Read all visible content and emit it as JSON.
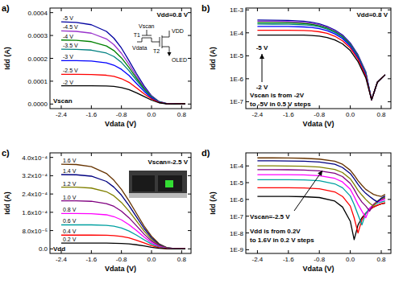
{
  "chart_data": [
    {
      "type": "line",
      "title": "a)",
      "x_label": "Vdata (V)",
      "y_label": "Idd (A)",
      "annotations": [
        "Vdd=0.8 V",
        "Vscan"
      ],
      "circuit": [
        "Vscan",
        "T1",
        "Vdata",
        "T2",
        "VDD",
        "OLED"
      ],
      "x": [
        -2.4,
        -2.0,
        -1.6,
        -1.2,
        -1.0,
        -0.8,
        -0.6,
        -0.4,
        -0.2,
        0.0,
        0.2,
        0.4,
        0.6,
        0.9
      ],
      "xlim": [
        -2.7,
        1.05
      ],
      "xticks": [
        -2.4,
        -1.6,
        -0.8,
        {
          "value": 0,
          "label": "0.0"
        },
        0.8
      ],
      "ylim": [
        -2e-05,
        0.00042
      ],
      "yticks": [
        {
          "value": 0,
          "label": "0.0000"
        },
        {
          "value": 0.0001,
          "label": "0.0001"
        },
        {
          "value": 0.0002,
          "label": "0.0002"
        },
        {
          "value": 0.0003,
          "label": "0.0003"
        },
        {
          "value": 0.0004,
          "label": "0.0004"
        }
      ],
      "grid": false,
      "series": [
        {
          "name": "-5 V",
          "color": "#0000a0",
          "values": [
            0.00036,
            0.000357,
            0.000347,
            0.000318,
            0.000288,
            0.000245,
            0.00019,
            0.000133,
            8e-05,
            3.6e-05,
            1.1e-05,
            2e-06,
            2e-07,
            1.5e-06
          ]
        },
        {
          "name": "-4.5 V",
          "color": "#9933cc",
          "values": [
            0.00032,
            0.000318,
            0.00031,
            0.000285,
            0.00026,
            0.000222,
            0.000174,
            0.000122,
            7.3e-05,
            3.3e-05,
            1e-05,
            2e-06,
            2e-07,
            1.5e-06
          ]
        },
        {
          "name": "-4 V",
          "color": "#008000",
          "values": [
            0.00028,
            0.000279,
            0.000273,
            0.000254,
            0.000234,
            0.000202,
            0.00016,
            0.000113,
            6.8e-05,
            3.1e-05,
            9.5e-06,
            1.8e-06,
            2e-07,
            1.4e-06
          ]
        },
        {
          "name": "-3.5 V",
          "color": "#008080",
          "values": [
            0.00024,
            0.000239,
            0.000236,
            0.000223,
            0.000208,
            0.000182,
            0.000146,
            0.000104,
            6.3e-05,
            2.9e-05,
            9e-06,
            1.7e-06,
            2e-07,
            1.4e-06
          ]
        },
        {
          "name": "-3 V",
          "color": "#0000ff",
          "values": [
            0.00019,
            0.00019,
            0.000188,
            0.00018,
            0.00017,
            0.000152,
            0.000125,
            9e-05,
            5.6e-05,
            2.6e-05,
            8e-06,
            1.5e-06,
            2e-07,
            1.3e-06
          ]
        },
        {
          "name": "-2.5 V",
          "color": "#ff0000",
          "values": [
            0.00013,
            0.00013,
            0.000129,
            0.000126,
            0.000121,
            0.000111,
            9.5e-05,
            7.1e-05,
            4.5e-05,
            2.2e-05,
            7e-06,
            1.3e-06,
            2e-07,
            1.3e-06
          ]
        },
        {
          "name": "-2 V",
          "color": "#000000",
          "values": [
            8e-05,
            8e-05,
            8e-05,
            7.9e-05,
            7.7e-05,
            7.2e-05,
            6.3e-05,
            4.9e-05,
            3.3e-05,
            1.7e-05,
            5.5e-06,
            1.1e-06,
            2e-07,
            1.2e-06
          ]
        }
      ]
    },
    {
      "type": "line",
      "title": "b)",
      "x_label": "Vdata (V)",
      "y_label": "Idd (A)",
      "log": "y",
      "annotations": [
        "Vdd=0.8 V",
        "Vscan is from -2V",
        "to -5V in 0.5 V steps",
        "-5 V",
        "-2 V"
      ],
      "x": [
        -2.4,
        -2.0,
        -1.6,
        -1.2,
        -1.0,
        -0.8,
        -0.6,
        -0.4,
        -0.2,
        0.0,
        0.2,
        0.4,
        0.55,
        0.7,
        0.9
      ],
      "xlim": [
        -2.7,
        1.05
      ],
      "xticks": [
        -2.4,
        -1.6,
        -0.8,
        {
          "value": 0,
          "label": "0.0"
        },
        0.8
      ],
      "ylim": [
        5e-08,
        0.0012
      ],
      "yticks": [
        {
          "value": 1e-07,
          "label": "1E-7"
        },
        {
          "value": 1e-06,
          "label": "1E-6"
        },
        {
          "value": 1e-05,
          "label": "1E-5"
        },
        {
          "value": 0.0001,
          "label": "1E-4"
        },
        {
          "value": 0.001,
          "label": "1E-3"
        }
      ],
      "grid": false,
      "series": [
        {
          "color": "#0000a0",
          "values": [
            0.00036,
            0.000357,
            0.000347,
            0.000318,
            0.000288,
            0.000245,
            0.00019,
            0.000133,
            8e-05,
            3.6e-05,
            1.1e-05,
            2e-06,
            1.2e-07,
            7e-07,
            1.5e-06
          ]
        },
        {
          "color": "#9933cc",
          "values": [
            0.00032,
            0.000318,
            0.00031,
            0.000285,
            0.00026,
            0.000222,
            0.000174,
            0.000122,
            7.3e-05,
            3.3e-05,
            1e-05,
            2e-06,
            1.2e-07,
            7e-07,
            1.5e-06
          ]
        },
        {
          "color": "#008000",
          "values": [
            0.00028,
            0.000279,
            0.000273,
            0.000254,
            0.000234,
            0.000202,
            0.00016,
            0.000113,
            6.8e-05,
            3.1e-05,
            9.5e-06,
            1.8e-06,
            1.2e-07,
            7e-07,
            1.5e-06
          ]
        },
        {
          "color": "#008080",
          "values": [
            0.00024,
            0.000239,
            0.000236,
            0.000223,
            0.000208,
            0.000182,
            0.000146,
            0.000104,
            6.3e-05,
            2.9e-05,
            9e-06,
            1.7e-06,
            1.2e-07,
            7e-07,
            1.5e-06
          ]
        },
        {
          "color": "#0000ff",
          "values": [
            0.00019,
            0.00019,
            0.000188,
            0.00018,
            0.00017,
            0.000152,
            0.000125,
            9e-05,
            5.6e-05,
            2.6e-05,
            8e-06,
            1.5e-06,
            1.2e-07,
            7e-07,
            1.5e-06
          ]
        },
        {
          "color": "#ff0000",
          "values": [
            0.00013,
            0.00013,
            0.000129,
            0.000126,
            0.000121,
            0.000111,
            9.5e-05,
            7.1e-05,
            4.5e-05,
            2.2e-05,
            7e-06,
            1.3e-06,
            1.2e-07,
            7e-07,
            1.5e-06
          ]
        },
        {
          "color": "#000000",
          "values": [
            8e-05,
            8e-05,
            8e-05,
            7.9e-05,
            7.7e-05,
            7.2e-05,
            6.3e-05,
            4.9e-05,
            3.3e-05,
            1.7e-05,
            5.5e-06,
            1.1e-06,
            1.2e-07,
            7e-07,
            1.5e-06
          ]
        }
      ]
    },
    {
      "type": "line",
      "title": "c)",
      "x_label": "Vdata (V)",
      "y_label": "Idd (A)",
      "annotations": [
        "Vscan=-2.5 V",
        "Vdd"
      ],
      "x": [
        -2.4,
        -2.0,
        -1.6,
        -1.2,
        -1.0,
        -0.8,
        -0.6,
        -0.4,
        -0.2,
        0.0,
        0.2,
        0.4,
        0.6,
        0.9
      ],
      "xlim": [
        -2.7,
        1.05
      ],
      "xticks": [
        -2.4,
        -1.6,
        -0.8,
        {
          "value": 0,
          "label": "0.0"
        },
        0.8
      ],
      "ylim": [
        -2e-05,
        0.00042
      ],
      "yticks": [
        {
          "value": 0,
          "label": "0.0"
        },
        {
          "value": 8e-05,
          "label": "8.0x10⁻⁵"
        },
        {
          "value": 0.00016,
          "label": "1.6x10⁻⁴"
        },
        {
          "value": 0.00024,
          "label": "2.4x10⁻⁴"
        },
        {
          "value": 0.00032,
          "label": "3.2x10⁻⁴"
        },
        {
          "value": 0.0004,
          "label": "4.0x10⁻⁴"
        }
      ],
      "grid": false,
      "series": [
        {
          "name": "1.6 V",
          "color": "#663300",
          "values": [
            0.00037,
            0.000369,
            0.00036,
            0.00033,
            0.0003,
            0.00026,
            0.00021,
            0.000155,
            0.0001,
            5.5e-05,
            2.2e-05,
            6e-06,
            1.5e-06,
            8e-07
          ]
        },
        {
          "name": "1.4 V",
          "color": "#000080",
          "values": [
            0.000325,
            0.000324,
            0.000318,
            0.000295,
            0.00027,
            0.000235,
            0.00019,
            0.00014,
            9e-05,
            4.8e-05,
            1.9e-05,
            5e-06,
            1.2e-06,
            5e-07
          ]
        },
        {
          "name": "1.2 V",
          "color": "#808000",
          "values": [
            0.00027,
            0.00027,
            0.000266,
            0.00025,
            0.000232,
            0.000203,
            0.000165,
            0.000122,
            7.8e-05,
            4.1e-05,
            1.6e-05,
            4e-06,
            9e-07,
            3e-07
          ]
        },
        {
          "name": "1.0 V",
          "color": "#800080",
          "values": [
            0.00021,
            0.00021,
            0.000208,
            0.000198,
            0.000186,
            0.000165,
            0.000136,
            0.000101,
            6.5e-05,
            3.4e-05,
            1.3e-05,
            3e-06,
            6e-07,
            2e-07
          ]
        },
        {
          "name": "0.8 V",
          "color": "#ff00ff",
          "values": [
            0.000155,
            0.000155,
            0.000154,
            0.000149,
            0.000141,
            0.000127,
            0.000106,
            8e-05,
            5.2e-05,
            2.7e-05,
            1e-05,
            2.2e-06,
            4e-07,
            1.5e-07
          ]
        },
        {
          "name": "0.6 V",
          "color": "#00a0a0",
          "values": [
            0.000105,
            0.000105,
            0.000105,
            0.000103,
            9.9e-05,
            9.1e-05,
            7.8e-05,
            6e-05,
            4e-05,
            2.1e-05,
            7.5e-06,
            1.6e-06,
            3e-07,
            1e-07
          ]
        },
        {
          "name": "0.4 V",
          "color": "#ff0000",
          "values": [
            6e-05,
            6e-05,
            6e-05,
            5.95e-05,
            5.8e-05,
            5.45e-05,
            4.8e-05,
            3.8e-05,
            2.6e-05,
            1.4e-05,
            5e-06,
            1e-06,
            1.5e-07,
            6e-08
          ]
        },
        {
          "name": "0.2 V",
          "color": "#000000",
          "values": [
            2.5e-05,
            2.5e-05,
            2.5e-05,
            2.5e-05,
            2.47e-05,
            2.38e-05,
            2.15e-05,
            1.78e-05,
            1.28e-05,
            7e-06,
            2.5e-06,
            5e-07,
            6e-08,
            3e-08
          ]
        }
      ]
    },
    {
      "type": "line",
      "title": "d)",
      "x_label": "Vdata (V)",
      "y_label": "Idd (A)",
      "log": "y",
      "annotations": [
        "Vscan=-2.5 V",
        "Vdd is from 0.2V",
        "to 1.6V in 0.2 V steps"
      ],
      "x": [
        -2.4,
        -2.0,
        -1.6,
        -1.2,
        -0.8,
        -0.4,
        -0.2,
        0.0,
        0.1,
        0.2,
        0.3,
        0.4,
        0.5,
        0.6,
        0.7,
        0.8,
        0.9
      ],
      "xlim": [
        -2.7,
        1.05
      ],
      "xticks": [
        -2.4,
        -1.6,
        -0.8,
        {
          "value": 0,
          "label": "0.0"
        },
        0.8
      ],
      "ylim": [
        6e-10,
        0.0006
      ],
      "yticks": [
        {
          "value": 1e-09,
          "label": "1E-9"
        },
        {
          "value": 1e-08,
          "label": "1E-8"
        },
        {
          "value": 1e-07,
          "label": "1E-7"
        },
        {
          "value": 1e-06,
          "label": "1E-6"
        },
        {
          "value": 1e-05,
          "label": "1E-5"
        },
        {
          "value": 0.0001,
          "label": "1E-4"
        }
      ],
      "grid": false,
      "series": [
        {
          "color": "#000000",
          "values": [
            1.5e-06,
            1.5e-06,
            1.5e-06,
            1.45e-06,
            1.3e-06,
            8e-07,
            3.5e-07,
            5e-08,
            4e-09,
            3e-08,
            8e-08,
            1.5e-07,
            2.5e-07,
            3.5e-07,
            4.5e-07,
            5.5e-07,
            6e-07
          ]
        },
        {
          "color": "#ff0000",
          "values": [
            5e-06,
            5e-06,
            5e-06,
            4.8e-06,
            4.3e-06,
            2.8e-06,
            1.5e-06,
            4e-07,
            8e-08,
            1e-08,
            6e-08,
            1.5e-07,
            2.5e-07,
            3.5e-07,
            4.5e-07,
            5.5e-07,
            6.5e-07
          ]
        },
        {
          "color": "#00a0a0",
          "values": [
            1.5e-05,
            1.5e-05,
            1.5e-05,
            1.45e-05,
            1.3e-05,
            8.5e-06,
            5e-06,
            1.6e-06,
            5e-07,
            1.2e-07,
            3e-08,
            1.5e-07,
            3e-07,
            4.5e-07,
            6e-07,
            7e-07,
            8e-07
          ]
        },
        {
          "color": "#ff00ff",
          "values": [
            3e-05,
            3e-05,
            3e-05,
            2.9e-05,
            2.6e-05,
            1.8e-05,
            1.1e-05,
            4e-06,
            1.5e-06,
            5e-07,
            2e-07,
            8e-08,
            3e-07,
            5e-07,
            7e-07,
            8.5e-07,
            1e-06
          ]
        },
        {
          "color": "#800080",
          "values": [
            6e-05,
            6e-05,
            5.9e-05,
            5.7e-05,
            5.1e-05,
            3.6e-05,
            2.3e-05,
            9e-06,
            4e-06,
            1.5e-06,
            7e-07,
            4e-07,
            2e-07,
            5e-07,
            8e-07,
            1e-06,
            1.2e-06
          ]
        },
        {
          "color": "#808000",
          "values": [
            0.0001,
            0.0001,
            9.9e-05,
            9.5e-05,
            8.6e-05,
            6.2e-05,
            4e-05,
            1.7e-05,
            8e-06,
            3.5e-06,
            1.8e-06,
            1e-06,
            6e-07,
            4e-07,
            8e-07,
            1.1e-06,
            1.4e-06
          ]
        },
        {
          "color": "#000080",
          "values": [
            0.0002,
            0.0002,
            0.000198,
            0.00019,
            0.00017,
            0.000125,
            8e-05,
            3.5e-05,
            1.7e-05,
            8e-06,
            4e-06,
            2.3e-06,
            1.5e-06,
            1e-06,
            7e-07,
            1.2e-06,
            1.6e-06
          ]
        },
        {
          "color": "#663300",
          "values": [
            0.0003,
            0.0003,
            0.000297,
            0.000285,
            0.000255,
            0.00019,
            0.000125,
            5.5e-05,
            2.8e-05,
            1.3e-05,
            7e-06,
            4e-06,
            2.8e-06,
            2e-06,
            1.7e-06,
            1.5e-06,
            2e-06
          ]
        }
      ]
    }
  ]
}
